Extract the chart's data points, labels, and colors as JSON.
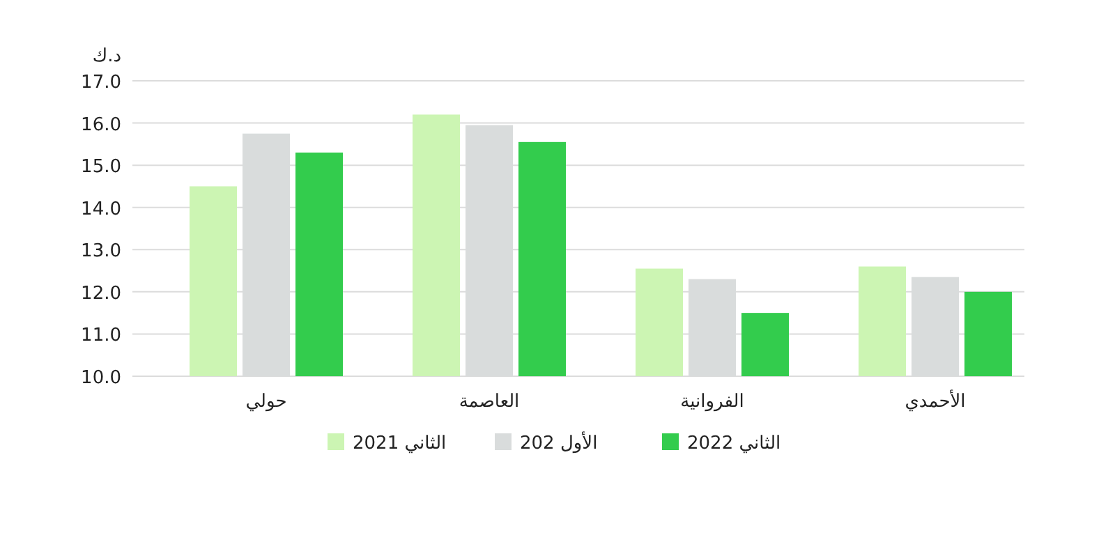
{
  "chart_data": {
    "type": "bar",
    "ylabel": "د.ك",
    "categories": [
      "حولي",
      "العاصمة",
      "الفروانية",
      "الأحمدي"
    ],
    "series": [
      {
        "name": "الثاني 2021",
        "color": "#ccf5b3",
        "values": [
          14.5,
          16.2,
          12.55,
          12.6
        ]
      },
      {
        "name": "الأول 202",
        "color": "#d9dcdc",
        "values": [
          15.75,
          15.95,
          12.3,
          12.35
        ]
      },
      {
        "name": "الثاني 2022",
        "color": "#33cc4d",
        "values": [
          15.3,
          15.55,
          11.5,
          12.0
        ]
      }
    ],
    "ylim": [
      10,
      17
    ],
    "yticks": [
      {
        "value": 10,
        "label": "10.0"
      },
      {
        "value": 11,
        "label": "11.0"
      },
      {
        "value": 12,
        "label": "12.0"
      },
      {
        "value": 13,
        "label": "13.0"
      },
      {
        "value": 14,
        "label": "14.0"
      },
      {
        "value": 15,
        "label": "15.0"
      },
      {
        "value": 16,
        "label": "16.0"
      },
      {
        "value": 17,
        "label": "17.0"
      }
    ],
    "grid": "y",
    "legend": "bottom"
  }
}
